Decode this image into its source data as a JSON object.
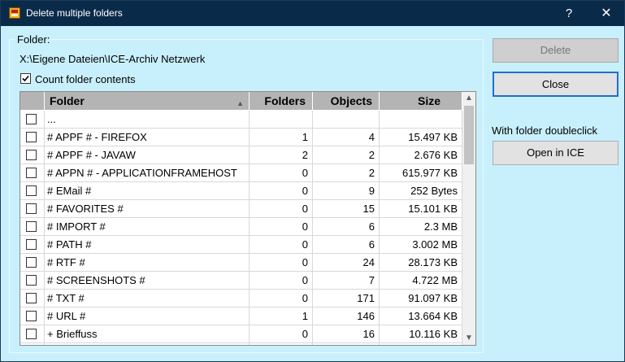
{
  "window": {
    "title": "Delete multiple folders",
    "help_glyph": "?",
    "close_glyph": "✕"
  },
  "folder_section": {
    "caption": "Folder:",
    "path": "X:\\Eigene Dateien\\ICE-Archiv Netzwerk",
    "count_contents_label": "Count folder contents",
    "count_contents_checked": true
  },
  "table": {
    "columns": [
      "",
      "Folder",
      "Folders",
      "Objects",
      "Size"
    ],
    "sort_indicator": "▲",
    "rows": [
      {
        "checked": false,
        "folder": "...",
        "folders": "",
        "objects": "",
        "size": ""
      },
      {
        "checked": false,
        "folder": "# APPF # - FIREFOX",
        "folders": "1",
        "objects": "4",
        "size": "15.497 KB"
      },
      {
        "checked": false,
        "folder": "# APPF # - JAVAW",
        "folders": "2",
        "objects": "2",
        "size": "2.676 KB"
      },
      {
        "checked": false,
        "folder": "# APPN # - APPLICATIONFRAMEHOST",
        "folders": "0",
        "objects": "2",
        "size": "615.977 KB"
      },
      {
        "checked": false,
        "folder": "# EMail #",
        "folders": "0",
        "objects": "9",
        "size": "252  Bytes"
      },
      {
        "checked": false,
        "folder": "# FAVORITES #",
        "folders": "0",
        "objects": "15",
        "size": "15.101 KB"
      },
      {
        "checked": false,
        "folder": "# IMPORT #",
        "folders": "0",
        "objects": "6",
        "size": "2.3 MB"
      },
      {
        "checked": false,
        "folder": "# PATH #",
        "folders": "0",
        "objects": "6",
        "size": "3.002 MB"
      },
      {
        "checked": false,
        "folder": "# RTF #",
        "folders": "0",
        "objects": "24",
        "size": "28.173 KB"
      },
      {
        "checked": false,
        "folder": "# SCREENSHOTS #",
        "folders": "0",
        "objects": "7",
        "size": "4.722 MB"
      },
      {
        "checked": false,
        "folder": "# TXT #",
        "folders": "0",
        "objects": "171",
        "size": "91.097 KB"
      },
      {
        "checked": false,
        "folder": "# URL #",
        "folders": "1",
        "objects": "146",
        "size": "13.664 KB"
      },
      {
        "checked": false,
        "folder": "+ Brieffuss",
        "folders": "0",
        "objects": "16",
        "size": "10.116 KB"
      },
      {
        "checked": false,
        "folder": "",
        "folders": "",
        "objects": "",
        "size": ""
      }
    ]
  },
  "buttons": {
    "delete": "Delete",
    "delete_enabled": false,
    "close": "Close",
    "doubleclick_label": "With folder doubleclick",
    "open_in_ice": "Open in ICE"
  },
  "icons": {
    "app": "app-archive-icon",
    "checkmark": "checkmark-icon",
    "scroll_up": "chevron-up-icon",
    "scroll_down": "chevron-down-icon"
  },
  "colors": {
    "titlebar": "#0a2a4a",
    "dialog_background": "#c8f0fc",
    "header_background": "#b4b4b4",
    "focus_border": "#1f6fd0"
  }
}
